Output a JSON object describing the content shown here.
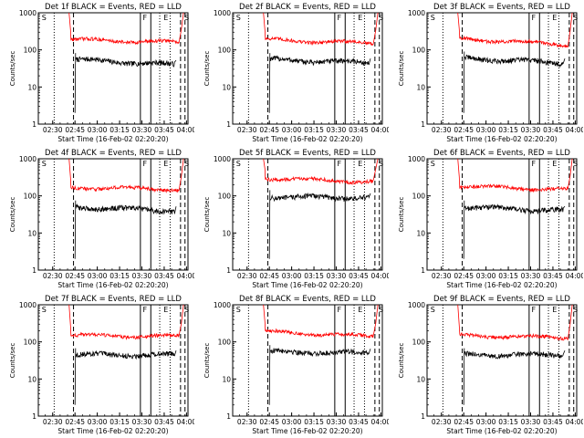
{
  "chart_data": [
    {
      "type": "line",
      "title": "Det 1f BLACK = Events, RED = LLD",
      "xlabel": "Start Time (16-Feb-02 02:20:20)",
      "ylabel": "Counts/sec",
      "ylim": [
        1,
        1000
      ],
      "yscale": "log",
      "xticks": [
        "02:30",
        "02:45",
        "03:00",
        "03:15",
        "03:30",
        "03:45",
        "04:00"
      ],
      "yticks": [
        "1",
        "10",
        "100",
        "1000"
      ],
      "markers": [
        "S",
        "F",
        "E",
        "S"
      ],
      "series": [
        {
          "name": "BLACK",
          "color": "#000000",
          "start": "02:45",
          "level": 55,
          "end": "03:52",
          "end_level": 40
        },
        {
          "name": "RED",
          "color": "#ff0000",
          "start": "02:42",
          "level": 190,
          "end": "03:55",
          "end_level": 160
        }
      ]
    },
    {
      "type": "line",
      "title": "Det 2f BLACK = Events, RED = LLD",
      "xlabel": "Start Time (16-Feb-02 02:20:20)",
      "ylabel": "Counts/sec",
      "ylim": [
        1,
        1000
      ],
      "yscale": "log",
      "xticks": [
        "02:30",
        "02:45",
        "03:00",
        "03:15",
        "03:30",
        "03:45",
        "04:00"
      ],
      "yticks": [
        "1",
        "10",
        "100",
        "1000"
      ],
      "markers": [
        "S",
        "F",
        "E",
        "S"
      ],
      "series": [
        {
          "name": "BLACK",
          "color": "#000000",
          "start": "02:45",
          "level": 55,
          "end": "03:52",
          "end_level": 45
        },
        {
          "name": "RED",
          "color": "#ff0000",
          "start": "02:42",
          "level": 190,
          "end": "03:55",
          "end_level": 150
        }
      ]
    },
    {
      "type": "line",
      "title": "Det 3f BLACK = Events, RED = LLD",
      "xlabel": "Start Time (16-Feb-02 02:20:20)",
      "ylabel": "Counts/sec",
      "ylim": [
        1,
        1000
      ],
      "yscale": "log",
      "xticks": [
        "02:30",
        "02:45",
        "03:00",
        "03:15",
        "03:30",
        "03:45",
        "04:00"
      ],
      "yticks": [
        "1",
        "10",
        "100",
        "1000"
      ],
      "markers": [
        "S",
        "F",
        "E",
        "S"
      ],
      "series": [
        {
          "name": "BLACK",
          "color": "#000000",
          "start": "02:45",
          "level": 60,
          "end": "03:52",
          "end_level": 45
        },
        {
          "name": "RED",
          "color": "#ff0000",
          "start": "02:42",
          "level": 200,
          "end": "03:55",
          "end_level": 140
        }
      ]
    },
    {
      "type": "line",
      "title": "Det 4f BLACK = Events, RED = LLD",
      "xlabel": "Start Time (16-Feb-02 02:20:20)",
      "ylabel": "Counts/sec",
      "ylim": [
        1,
        1000
      ],
      "yscale": "log",
      "xticks": [
        "02:30",
        "02:45",
        "03:00",
        "03:15",
        "03:30",
        "03:45",
        "04:00"
      ],
      "yticks": [
        "1",
        "10",
        "100",
        "1000"
      ],
      "markers": [
        "S",
        "F",
        "E",
        "S"
      ],
      "series": [
        {
          "name": "BLACK",
          "color": "#000000",
          "start": "02:45",
          "level": 50,
          "end": "03:52",
          "end_level": 40
        },
        {
          "name": "RED",
          "color": "#ff0000",
          "start": "02:42",
          "level": 170,
          "end": "03:55",
          "end_level": 150
        }
      ]
    },
    {
      "type": "line",
      "title": "Det 5f BLACK = Events, RED = LLD",
      "xlabel": "Start Time (16-Feb-02 02:20:20)",
      "ylabel": "Counts/sec",
      "ylim": [
        1,
        1000
      ],
      "yscale": "log",
      "xticks": [
        "02:30",
        "02:45",
        "03:00",
        "03:15",
        "03:30",
        "03:45",
        "04:00"
      ],
      "yticks": [
        "1",
        "10",
        "100",
        "1000"
      ],
      "markers": [
        "S",
        "F",
        "E",
        "S"
      ],
      "series": [
        {
          "name": "BLACK",
          "color": "#000000",
          "start": "02:45",
          "level": 95,
          "end": "03:52",
          "end_level": 90
        },
        {
          "name": "RED",
          "color": "#ff0000",
          "start": "02:42",
          "level": 300,
          "end": "03:55",
          "end_level": 240
        }
      ]
    },
    {
      "type": "line",
      "title": "Det 6f BLACK = Events, RED = LLD",
      "xlabel": "Start Time (16-Feb-02 02:20:20)",
      "ylabel": "Counts/sec",
      "ylim": [
        1,
        1000
      ],
      "yscale": "log",
      "xticks": [
        "02:30",
        "02:45",
        "03:00",
        "03:15",
        "03:30",
        "03:45",
        "04:00"
      ],
      "yticks": [
        "1",
        "10",
        "100",
        "1000"
      ],
      "markers": [
        "S",
        "F",
        "E",
        "S"
      ],
      "series": [
        {
          "name": "BLACK",
          "color": "#000000",
          "start": "02:45",
          "level": 50,
          "end": "03:52",
          "end_level": 40
        },
        {
          "name": "RED",
          "color": "#ff0000",
          "start": "02:42",
          "level": 180,
          "end": "03:55",
          "end_level": 150
        }
      ]
    },
    {
      "type": "line",
      "title": "Det 7f BLACK = Events, RED = LLD",
      "xlabel": "Start Time (16-Feb-02 02:20:20)",
      "ylabel": "Counts/sec",
      "ylim": [
        1,
        1000
      ],
      "yscale": "log",
      "xticks": [
        "02:30",
        "02:45",
        "03:00",
        "03:15",
        "03:30",
        "03:45",
        "04:00"
      ],
      "yticks": [
        "1",
        "10",
        "100",
        "1000"
      ],
      "markers": [
        "S",
        "F",
        "E",
        "S"
      ],
      "series": [
        {
          "name": "BLACK",
          "color": "#000000",
          "start": "02:45",
          "level": 45,
          "end": "03:52",
          "end_level": 45
        },
        {
          "name": "RED",
          "color": "#ff0000",
          "start": "02:42",
          "level": 150,
          "end": "03:55",
          "end_level": 140
        }
      ]
    },
    {
      "type": "line",
      "title": "Det 8f BLACK = Events, RED = LLD",
      "xlabel": "Start Time (16-Feb-02 02:20:20)",
      "ylabel": "Counts/sec",
      "ylim": [
        1,
        1000
      ],
      "yscale": "log",
      "xticks": [
        "02:30",
        "02:45",
        "03:00",
        "03:15",
        "03:30",
        "03:45",
        "04:00"
      ],
      "yticks": [
        "1",
        "10",
        "100",
        "1000"
      ],
      "markers": [
        "S",
        "F",
        "E",
        "S"
      ],
      "series": [
        {
          "name": "BLACK",
          "color": "#000000",
          "start": "02:45",
          "level": 55,
          "end": "03:52",
          "end_level": 50
        },
        {
          "name": "RED",
          "color": "#ff0000",
          "start": "02:42",
          "level": 190,
          "end": "03:55",
          "end_level": 140
        }
      ]
    },
    {
      "type": "line",
      "title": "Det 9f BLACK = Events, RED = LLD",
      "xlabel": "Start Time (16-Feb-02 02:20:20)",
      "ylabel": "Counts/sec",
      "ylim": [
        1,
        1000
      ],
      "yscale": "log",
      "xticks": [
        "02:30",
        "02:45",
        "03:00",
        "03:15",
        "03:30",
        "03:45",
        "04:00"
      ],
      "yticks": [
        "1",
        "10",
        "100",
        "1000"
      ],
      "markers": [
        "S",
        "F",
        "E",
        "S"
      ],
      "series": [
        {
          "name": "BLACK",
          "color": "#000000",
          "start": "02:45",
          "level": 45,
          "end": "03:52",
          "end_level": 45
        },
        {
          "name": "RED",
          "color": "#ff0000",
          "start": "02:42",
          "level": 150,
          "end": "03:55",
          "end_level": 130
        }
      ]
    }
  ]
}
